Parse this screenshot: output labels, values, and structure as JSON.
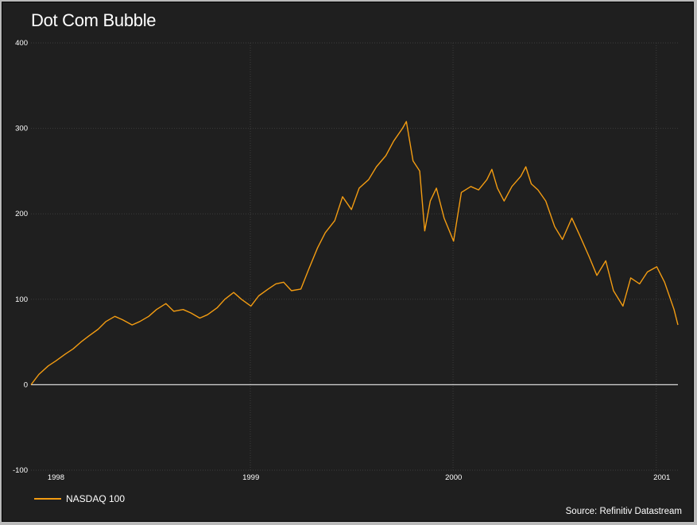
{
  "chart_data": {
    "type": "line",
    "title": "Dot Com Bubble",
    "source": "Source: Refinitiv Datastream",
    "ylim": [
      -100,
      400
    ],
    "y_ticks": [
      "-100",
      "0",
      "100",
      "200",
      "300",
      "400"
    ],
    "x_ticks": [
      "1998",
      "1999",
      "2000",
      "2001"
    ],
    "grid": true,
    "legend_position": "bottom-left",
    "colors": {
      "background": "#1f1f1f",
      "line": "#f39c12",
      "grid": "#3c3c3c",
      "zero_line": "#d8d8d8"
    },
    "series": [
      {
        "name": "NASDAQ 100",
        "points": [
          [
            "1997-12-01",
            0
          ],
          [
            "1997-12-15",
            12
          ],
          [
            "1998-01-01",
            22
          ],
          [
            "1998-01-15",
            28
          ],
          [
            "1998-02-01",
            36
          ],
          [
            "1998-02-15",
            42
          ],
          [
            "1998-03-01",
            50
          ],
          [
            "1998-03-15",
            57
          ],
          [
            "1998-04-01",
            65
          ],
          [
            "1998-04-15",
            74
          ],
          [
            "1998-05-01",
            80
          ],
          [
            "1998-05-15",
            76
          ],
          [
            "1998-06-01",
            70
          ],
          [
            "1998-06-15",
            74
          ],
          [
            "1998-07-01",
            80
          ],
          [
            "1998-07-15",
            88
          ],
          [
            "1998-08-01",
            95
          ],
          [
            "1998-08-15",
            86
          ],
          [
            "1998-09-01",
            88
          ],
          [
            "1998-09-15",
            84
          ],
          [
            "1998-10-01",
            78
          ],
          [
            "1998-10-15",
            82
          ],
          [
            "1998-11-01",
            90
          ],
          [
            "1998-11-15",
            100
          ],
          [
            "1998-12-01",
            108
          ],
          [
            "1998-12-15",
            100
          ],
          [
            "1999-01-01",
            92
          ],
          [
            "1999-01-15",
            104
          ],
          [
            "1999-02-01",
            112
          ],
          [
            "1999-02-15",
            118
          ],
          [
            "1999-03-01",
            120
          ],
          [
            "1999-03-15",
            110
          ],
          [
            "1999-04-01",
            112
          ],
          [
            "1999-04-15",
            135
          ],
          [
            "1999-05-01",
            160
          ],
          [
            "1999-05-15",
            178
          ],
          [
            "1999-06-01",
            192
          ],
          [
            "1999-06-15",
            220
          ],
          [
            "1999-07-01",
            205
          ],
          [
            "1999-07-15",
            230
          ],
          [
            "1999-08-01",
            240
          ],
          [
            "1999-08-15",
            255
          ],
          [
            "1999-09-01",
            268
          ],
          [
            "1999-09-15",
            285
          ],
          [
            "1999-10-01",
            300
          ],
          [
            "1999-10-08",
            308
          ],
          [
            "1999-10-20",
            262
          ],
          [
            "1999-11-01",
            250
          ],
          [
            "1999-11-10",
            180
          ],
          [
            "1999-11-20",
            215
          ],
          [
            "1999-12-01",
            230
          ],
          [
            "1999-12-15",
            195
          ],
          [
            "2000-01-01",
            168
          ],
          [
            "2000-01-15",
            225
          ],
          [
            "2000-02-01",
            232
          ],
          [
            "2000-02-15",
            228
          ],
          [
            "2000-03-01",
            240
          ],
          [
            "2000-03-10",
            252
          ],
          [
            "2000-03-20",
            230
          ],
          [
            "2000-04-01",
            215
          ],
          [
            "2000-04-15",
            232
          ],
          [
            "2000-05-01",
            244
          ],
          [
            "2000-05-10",
            255
          ],
          [
            "2000-05-20",
            235
          ],
          [
            "2000-06-01",
            228
          ],
          [
            "2000-06-15",
            215
          ],
          [
            "2000-07-01",
            185
          ],
          [
            "2000-07-15",
            170
          ],
          [
            "2000-08-01",
            195
          ],
          [
            "2000-08-15",
            175
          ],
          [
            "2000-09-01",
            150
          ],
          [
            "2000-09-15",
            128
          ],
          [
            "2000-10-01",
            145
          ],
          [
            "2000-10-15",
            110
          ],
          [
            "2000-11-01",
            92
          ],
          [
            "2000-11-15",
            125
          ],
          [
            "2000-12-01",
            118
          ],
          [
            "2000-12-15",
            132
          ],
          [
            "2001-01-01",
            138
          ],
          [
            "2001-01-15",
            120
          ],
          [
            "2001-02-01",
            88
          ],
          [
            "2001-02-08",
            70
          ]
        ]
      }
    ]
  }
}
